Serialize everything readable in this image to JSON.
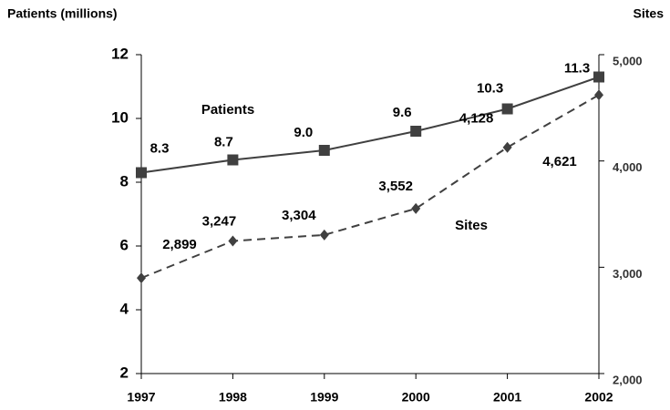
{
  "chart_data": {
    "type": "line",
    "y_axis_label": "Patients (millions)",
    "y2_axis_label": "Sites",
    "categories": [
      "1997",
      "1998",
      "1999",
      "2000",
      "2001",
      "2002"
    ],
    "series": [
      {
        "name": "Patients",
        "color": "#404040",
        "values": [
          8.3,
          8.7,
          9.0,
          9.6,
          10.3,
          11.3
        ],
        "value_labels": [
          "8.3",
          "8.7",
          "9.0",
          "9.6",
          "10.3",
          "11.3"
        ]
      },
      {
        "name": "Sites",
        "color": "#404040",
        "axis": "y2",
        "values": [
          2899,
          3247,
          3304,
          3552,
          4128,
          4621
        ],
        "value_labels": [
          "2,899",
          "3,247",
          "3,304",
          "3,552",
          "4,128",
          "4,621"
        ]
      }
    ],
    "ylim": [
      2,
      12
    ],
    "yticks": [
      2,
      4,
      6,
      8,
      10,
      12
    ],
    "y2lim": [
      2000,
      5000
    ],
    "y2ticks": [
      {
        "value": 2000,
        "label": "2,000"
      },
      {
        "value": 3000,
        "label": "3,000"
      },
      {
        "value": 4000,
        "label": "4,000"
      },
      {
        "value": 5000,
        "label": "5,000"
      }
    ]
  }
}
